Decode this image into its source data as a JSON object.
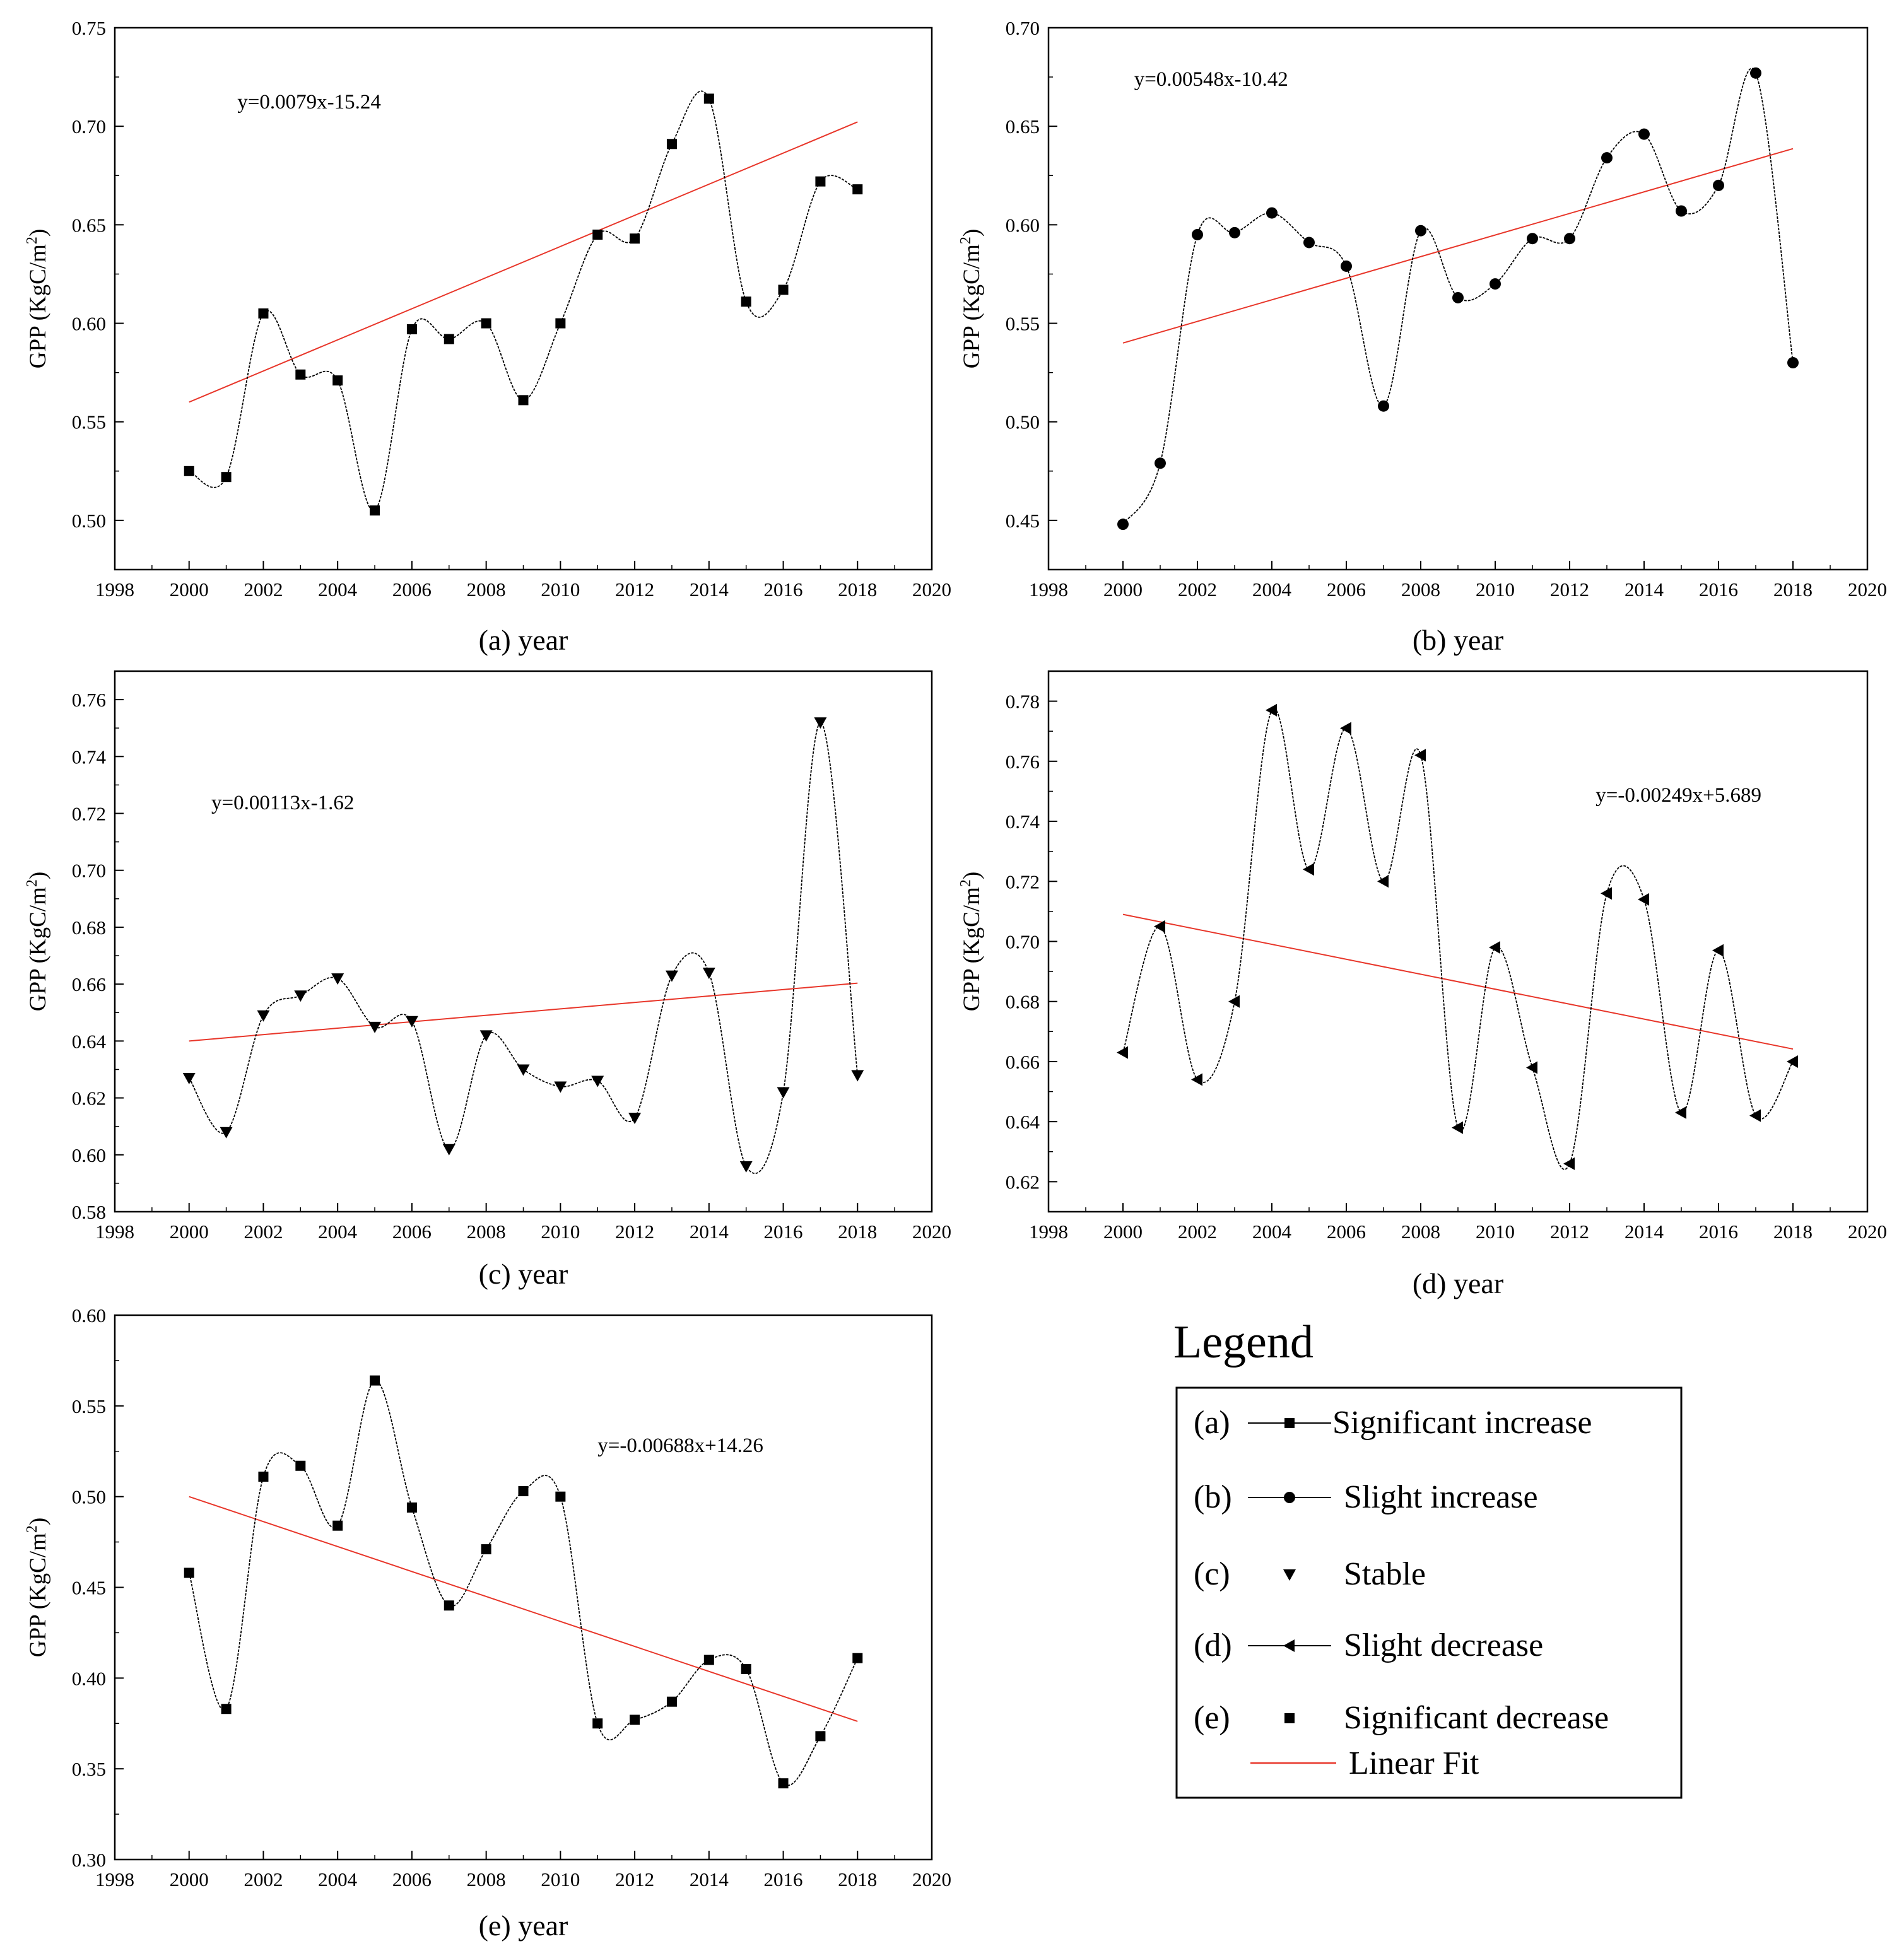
{
  "chart_data": [
    {
      "id": "a",
      "type": "line",
      "caption": "(a) year",
      "ylabel": "GPP (KgC/m²)",
      "xlim": [
        1998,
        2020
      ],
      "ylim": [
        0.475,
        0.75
      ],
      "yticks": [
        0.5,
        0.55,
        0.6,
        0.65,
        0.7,
        0.75
      ],
      "xticks": [
        1998,
        2000,
        2002,
        2004,
        2006,
        2008,
        2010,
        2012,
        2014,
        2016,
        2018,
        2020
      ],
      "marker": "square",
      "x": [
        2000,
        2001,
        2002,
        2003,
        2004,
        2005,
        2006,
        2007,
        2008,
        2009,
        2010,
        2011,
        2012,
        2013,
        2014,
        2015,
        2016,
        2017,
        2018
      ],
      "y": [
        0.525,
        0.522,
        0.605,
        0.574,
        0.571,
        0.505,
        0.597,
        0.592,
        0.6,
        0.561,
        0.6,
        0.645,
        0.643,
        0.691,
        0.714,
        0.611,
        0.617,
        0.672,
        0.668
      ],
      "fit": {
        "slope": 0.0079,
        "intercept": -15.24,
        "x_range": [
          2000,
          2018
        ]
      },
      "equation": "y=0.0079x-15.24",
      "equation_pos": {
        "x": 2001.3,
        "y": 0.709
      }
    },
    {
      "id": "b",
      "type": "line",
      "caption": "(b) year",
      "ylabel": "GPP (KgC/m²)",
      "xlim": [
        1998,
        2020
      ],
      "ylim": [
        0.425,
        0.7
      ],
      "yticks": [
        0.45,
        0.5,
        0.55,
        0.6,
        0.65,
        0.7
      ],
      "xticks": [
        1998,
        2000,
        2002,
        2004,
        2006,
        2008,
        2010,
        2012,
        2014,
        2016,
        2018,
        2020
      ],
      "marker": "circle",
      "x": [
        2000,
        2001,
        2002,
        2003,
        2004,
        2005,
        2006,
        2007,
        2008,
        2009,
        2010,
        2011,
        2012,
        2013,
        2014,
        2015,
        2016,
        2017,
        2018
      ],
      "y": [
        0.448,
        0.479,
        0.595,
        0.596,
        0.606,
        0.591,
        0.579,
        0.508,
        0.597,
        0.563,
        0.57,
        0.593,
        0.593,
        0.634,
        0.646,
        0.607,
        0.62,
        0.677,
        0.53
      ],
      "fit": {
        "slope": 0.00548,
        "intercept": -10.42,
        "x_range": [
          2000,
          2018
        ]
      },
      "equation": "y=0.00548x-10.42",
      "equation_pos": {
        "x": 2000.3,
        "y": 0.6705
      }
    },
    {
      "id": "c",
      "type": "line",
      "caption": "(c) year",
      "ylabel": "GPP (KgC/m²)",
      "xlim": [
        1998,
        2020
      ],
      "ylim": [
        0.58,
        0.77
      ],
      "yticks": [
        0.58,
        0.6,
        0.62,
        0.64,
        0.66,
        0.68,
        0.7,
        0.72,
        0.74,
        0.76
      ],
      "xticks": [
        1998,
        2000,
        2002,
        2004,
        2006,
        2008,
        2010,
        2012,
        2014,
        2016,
        2018,
        2020
      ],
      "marker": "triangle-down",
      "x": [
        2000,
        2001,
        2002,
        2003,
        2004,
        2005,
        2006,
        2007,
        2008,
        2009,
        2010,
        2011,
        2012,
        2013,
        2014,
        2015,
        2016,
        2017,
        2018
      ],
      "y": [
        0.627,
        0.608,
        0.649,
        0.656,
        0.662,
        0.645,
        0.647,
        0.602,
        0.642,
        0.63,
        0.624,
        0.626,
        0.613,
        0.663,
        0.664,
        0.596,
        0.622,
        0.752,
        0.628
      ],
      "fit": {
        "slope": 0.00113,
        "intercept": -1.62,
        "x_range": [
          2000,
          2018
        ]
      },
      "equation": "y=0.00113x-1.62",
      "equation_pos": {
        "x": 2000.6,
        "y": 0.7215
      }
    },
    {
      "id": "d",
      "type": "line",
      "caption": "(d) year",
      "ylabel": "GPP (KgC/m²)",
      "xlim": [
        1998,
        2020
      ],
      "ylim": [
        0.61,
        0.79
      ],
      "yticks": [
        0.62,
        0.64,
        0.66,
        0.68,
        0.7,
        0.72,
        0.74,
        0.76,
        0.78
      ],
      "xticks": [
        1998,
        2000,
        2002,
        2004,
        2006,
        2008,
        2010,
        2012,
        2014,
        2016,
        2018,
        2020
      ],
      "marker": "triangle-left",
      "x": [
        2000,
        2001,
        2002,
        2003,
        2004,
        2005,
        2006,
        2007,
        2008,
        2009,
        2010,
        2011,
        2012,
        2013,
        2014,
        2015,
        2016,
        2017,
        2018
      ],
      "y": [
        0.663,
        0.705,
        0.654,
        0.68,
        0.777,
        0.724,
        0.771,
        0.72,
        0.762,
        0.638,
        0.698,
        0.658,
        0.626,
        0.716,
        0.714,
        0.643,
        0.697,
        0.642,
        0.66
      ],
      "fit": {
        "slope": -0.00249,
        "intercept": 5.689,
        "x_range": [
          2000,
          2018
        ]
      },
      "equation": "y=-0.00249x+5.689",
      "equation_pos": {
        "x": 2012.7,
        "y": 0.7465
      }
    },
    {
      "id": "e",
      "type": "line",
      "caption": "(e) year",
      "ylabel": "GPP (KgC/m²)",
      "xlim": [
        1998,
        2020
      ],
      "ylim": [
        0.3,
        0.6
      ],
      "yticks": [
        0.3,
        0.35,
        0.4,
        0.45,
        0.5,
        0.55,
        0.6
      ],
      "xticks": [
        1998,
        2000,
        2002,
        2004,
        2006,
        2008,
        2010,
        2012,
        2014,
        2016,
        2018,
        2020
      ],
      "marker": "square",
      "x": [
        2000,
        2001,
        2002,
        2003,
        2004,
        2005,
        2006,
        2007,
        2008,
        2009,
        2010,
        2011,
        2012,
        2013,
        2014,
        2015,
        2016,
        2017,
        2018
      ],
      "y": [
        0.458,
        0.383,
        0.511,
        0.517,
        0.484,
        0.564,
        0.494,
        0.44,
        0.471,
        0.503,
        0.5,
        0.375,
        0.377,
        0.387,
        0.41,
        0.405,
        0.342,
        0.368,
        0.411
      ],
      "fit": {
        "slope": -0.00688,
        "intercept": 14.26,
        "x_range": [
          2000,
          2018
        ]
      },
      "equation": "y=-0.00688x+14.26",
      "equation_pos": {
        "x": 2011.0,
        "y": 0.5245
      }
    }
  ],
  "legend": {
    "title": "Legend",
    "items": [
      {
        "letter": "(a)",
        "label": "Significant increase",
        "marker": "square",
        "line": true
      },
      {
        "letter": "(b)",
        "label": "Slight increase",
        "marker": "circle",
        "line": true
      },
      {
        "letter": "(c)",
        "label": "Stable",
        "marker": "triangle-down",
        "line": false
      },
      {
        "letter": "(d)",
        "label": "Slight decrease",
        "marker": "triangle-left",
        "line": true
      },
      {
        "letter": "(e)",
        "label": "Significant decrease",
        "marker": "square",
        "line": false
      }
    ],
    "fit_label": "Linear Fit"
  },
  "colors": {
    "series": "#000000",
    "fit": "#e8362a",
    "axis": "#000000"
  }
}
